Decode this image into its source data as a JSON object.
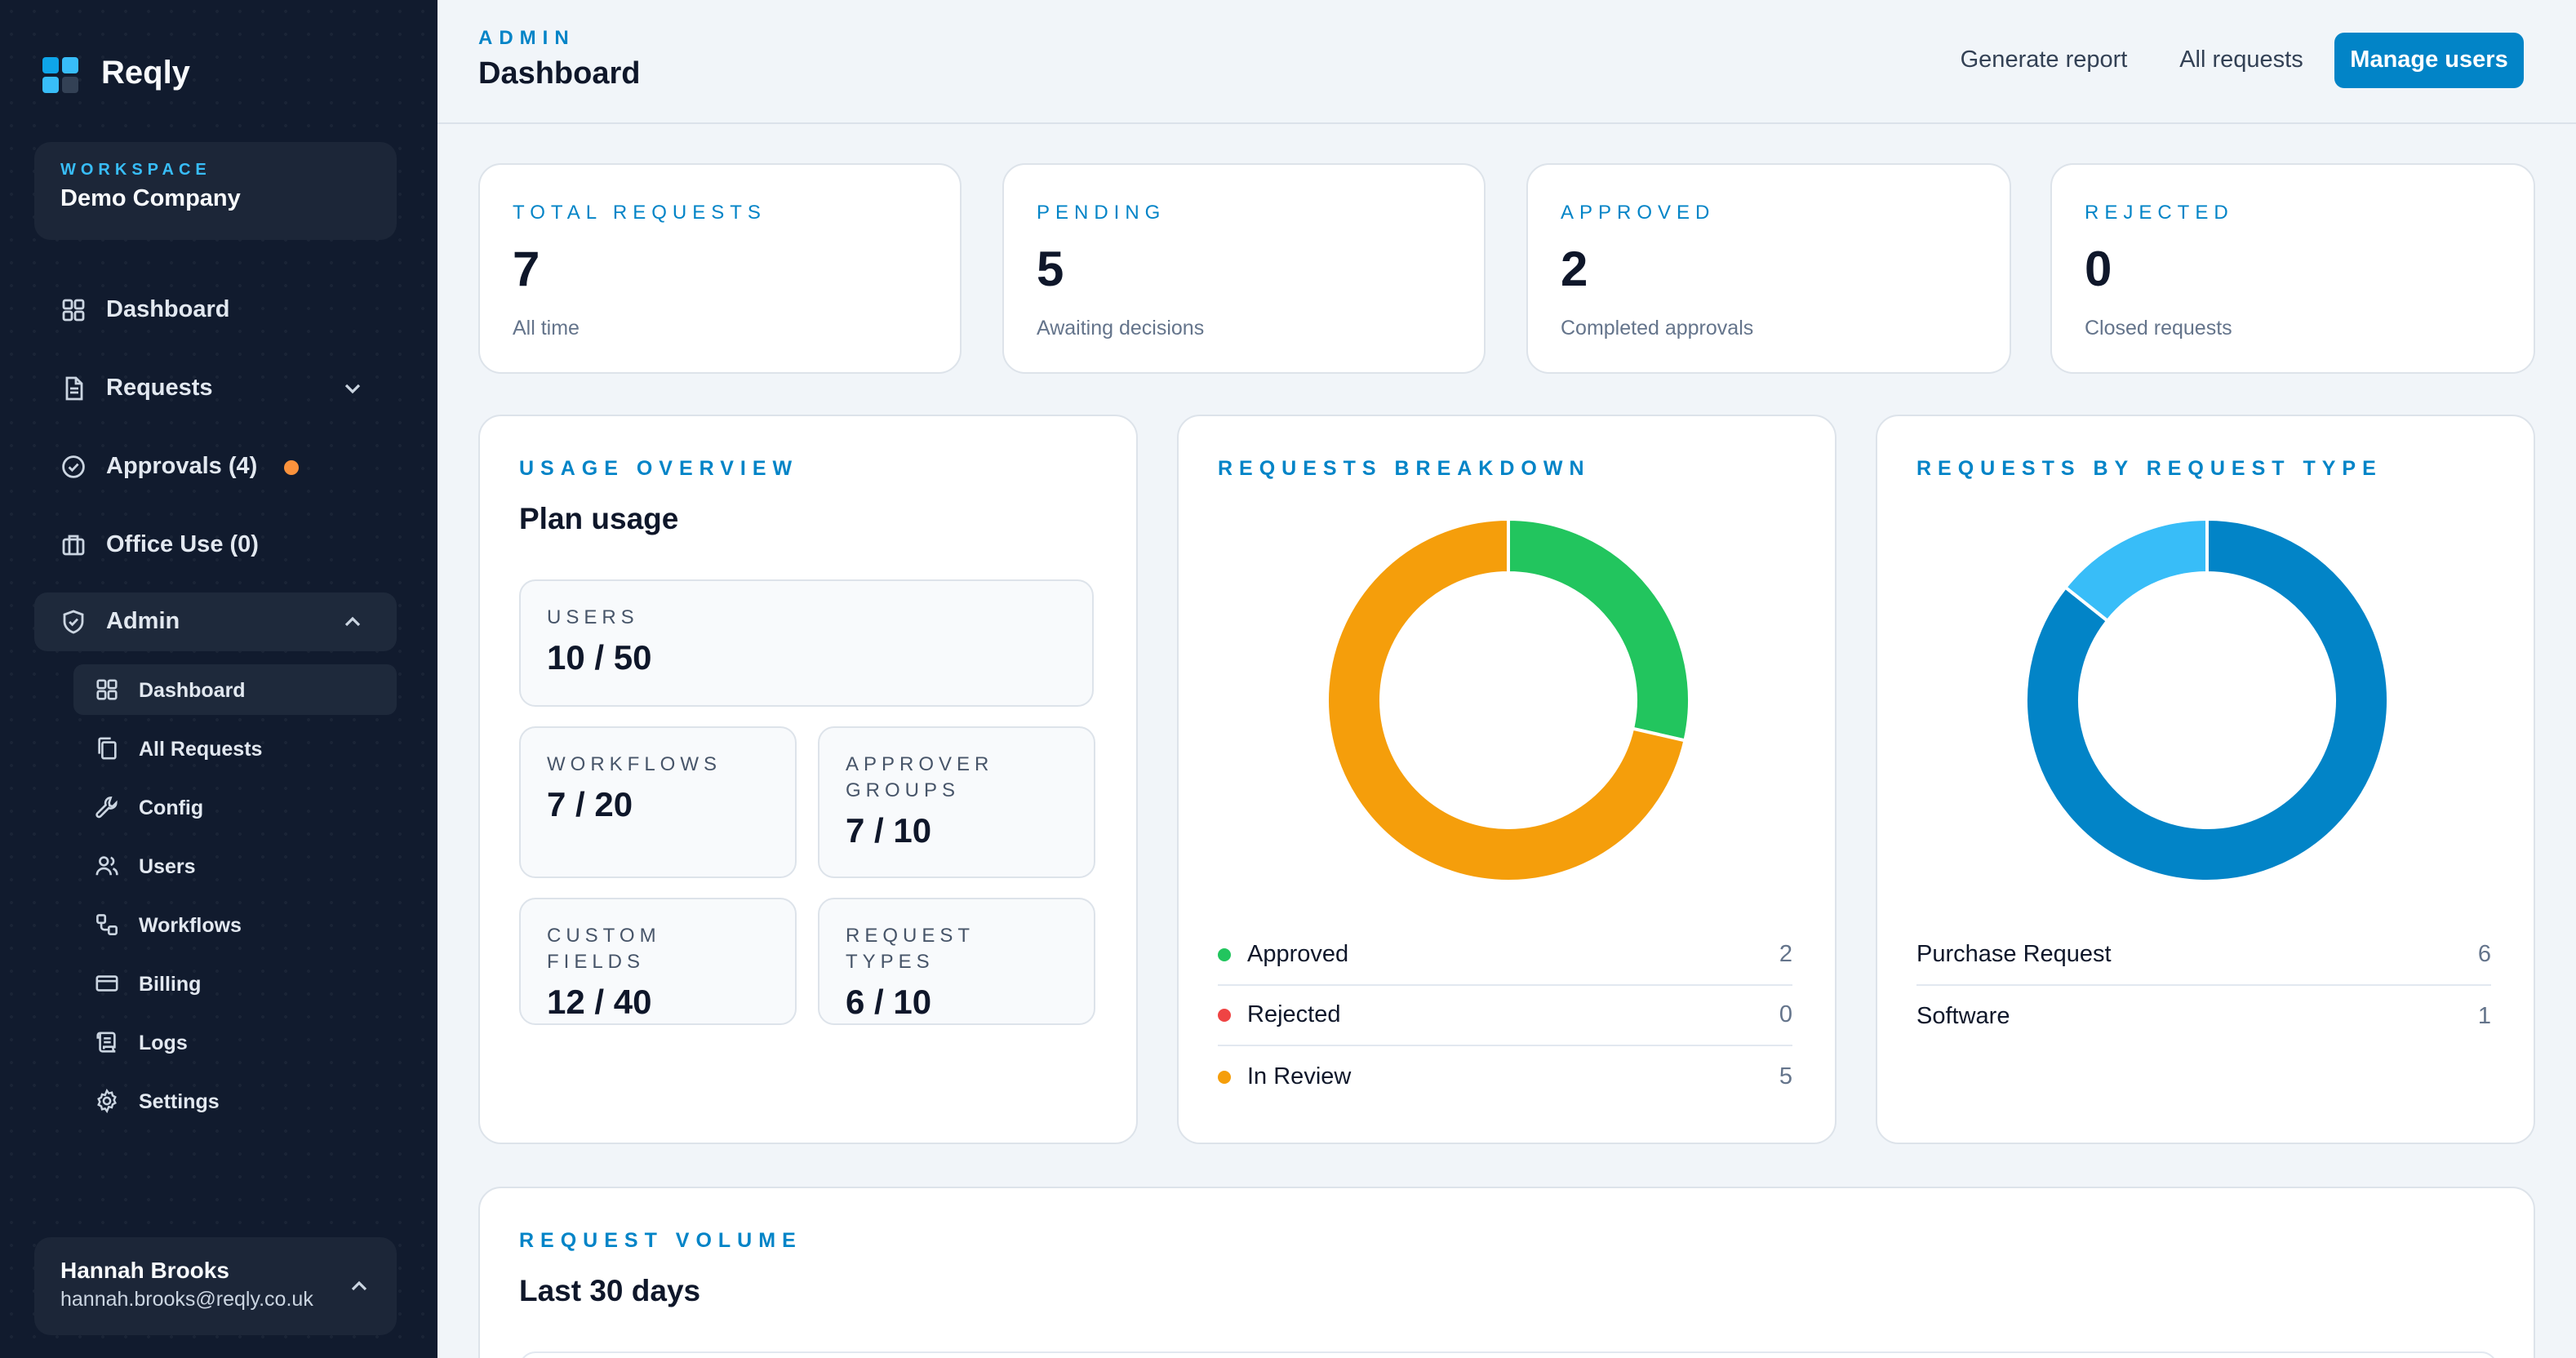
{
  "brand": {
    "name": "Reqly",
    "colors": [
      "#0ea5e9",
      "#38bdf8",
      "#38bdf8",
      "#334155"
    ]
  },
  "workspace": {
    "label": "WORKSPACE",
    "name": "Demo Company"
  },
  "nav": {
    "dashboard": "Dashboard",
    "requests": "Requests",
    "approvals": "Approvals (4)",
    "office_use": "Office Use (0)",
    "admin": "Admin"
  },
  "admin_sub": [
    {
      "label": "Dashboard",
      "icon": "grid-icon"
    },
    {
      "label": "All Requests",
      "icon": "copy-icon"
    },
    {
      "label": "Config",
      "icon": "wrench-icon"
    },
    {
      "label": "Users",
      "icon": "users-icon"
    },
    {
      "label": "Workflows",
      "icon": "workflow-icon"
    },
    {
      "label": "Billing",
      "icon": "credit-card-icon"
    },
    {
      "label": "Logs",
      "icon": "scroll-icon"
    },
    {
      "label": "Settings",
      "icon": "gear-icon"
    }
  ],
  "user": {
    "name": "Hannah Brooks",
    "email": "hannah.brooks@reqly.co.uk"
  },
  "header": {
    "label": "ADMIN",
    "title": "Dashboard",
    "generate_report": "Generate report",
    "all_requests": "All requests",
    "manage_users": "Manage users"
  },
  "stats": [
    {
      "label": "TOTAL REQUESTS",
      "value": "7",
      "sub": "All time"
    },
    {
      "label": "PENDING",
      "value": "5",
      "sub": "Awaiting decisions"
    },
    {
      "label": "APPROVED",
      "value": "2",
      "sub": "Completed approvals"
    },
    {
      "label": "REJECTED",
      "value": "0",
      "sub": "Closed requests"
    }
  ],
  "usage": {
    "label": "USAGE OVERVIEW",
    "title": "Plan usage",
    "users": {
      "label": "USERS",
      "value": "10 / 50"
    },
    "workflows": {
      "label": "WORKFLOWS",
      "value": "7 / 20"
    },
    "approver_groups": {
      "label": "APPROVER GROUPS",
      "value": "7 / 10"
    },
    "custom_fields": {
      "label": "CUSTOM FIELDS",
      "value": "12 / 40"
    },
    "request_types": {
      "label": "REQUEST TYPES",
      "value": "6 / 10"
    }
  },
  "breakdown": {
    "label": "REQUESTS BREAKDOWN",
    "legend": [
      {
        "name": "Approved",
        "count": "2",
        "color": "#22c55e"
      },
      {
        "name": "Rejected",
        "count": "0",
        "color": "#ef4444"
      },
      {
        "name": "In Review",
        "count": "5",
        "color": "#f59e0b"
      }
    ]
  },
  "by_type": {
    "label": "REQUESTS BY REQUEST TYPE",
    "legend": [
      {
        "name": "Purchase Request",
        "count": "6",
        "color": "#0284c7"
      },
      {
        "name": "Software",
        "count": "1",
        "color": "#38bdf8"
      }
    ]
  },
  "volume": {
    "label": "REQUEST VOLUME",
    "title": "Last 30 days"
  },
  "chart_data": [
    {
      "type": "pie",
      "title": "REQUESTS BREAKDOWN",
      "categories": [
        "Approved",
        "Rejected",
        "In Review"
      ],
      "values": [
        2,
        0,
        5
      ],
      "colors": [
        "#22c55e",
        "#ef4444",
        "#f59e0b"
      ],
      "donut": true,
      "legend": "bottom"
    },
    {
      "type": "pie",
      "title": "REQUESTS BY REQUEST TYPE",
      "categories": [
        "Purchase Request",
        "Software"
      ],
      "values": [
        6,
        1
      ],
      "colors": [
        "#0284c7",
        "#38bdf8"
      ],
      "donut": true,
      "legend": "bottom"
    }
  ]
}
